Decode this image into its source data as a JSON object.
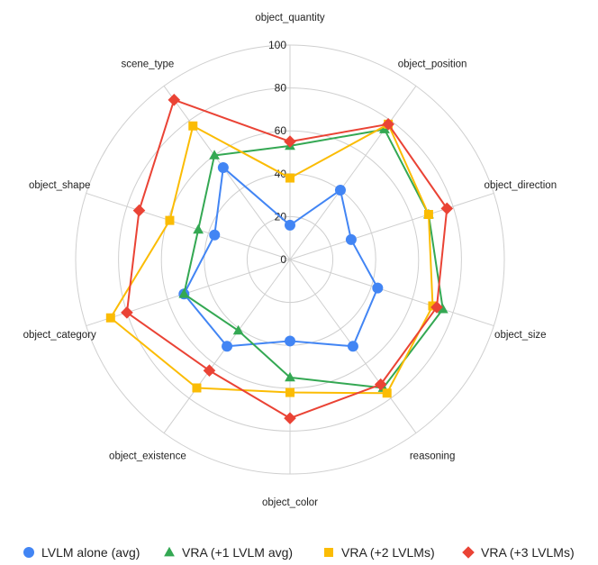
{
  "chart_data": {
    "type": "radar",
    "title": "",
    "range": [
      0,
      100
    ],
    "ticks": [
      "0",
      "20",
      "40",
      "60",
      "80",
      "100"
    ],
    "categories": [
      "object_quantity",
      "object_position",
      "object_direction",
      "object_size",
      "reasoning",
      "object_color",
      "object_existence",
      "object_category",
      "object_shape",
      "scene_type"
    ],
    "series": [
      {
        "name": "LVLM alone (avg)",
        "color": "#4285F4",
        "marker": "circle",
        "values": [
          16,
          40,
          30,
          43,
          50,
          38,
          50,
          52,
          37,
          53
        ]
      },
      {
        "name": "VRA (+1 LVLM avg)",
        "color": "#34A853",
        "marker": "triangle",
        "values": [
          53,
          75,
          68,
          75,
          74,
          55,
          41,
          52,
          45,
          60
        ]
      },
      {
        "name": "VRA (+2 LVLMs)",
        "color": "#FBBC04",
        "marker": "square",
        "values": [
          38,
          78,
          68,
          70,
          77,
          62,
          74,
          88,
          59,
          77
        ]
      },
      {
        "name": "VRA (+3 LVLMs)",
        "color": "#EA4335",
        "marker": "diamond",
        "values": [
          55,
          78,
          77,
          72,
          72,
          74,
          64,
          80,
          74,
          92
        ]
      }
    ],
    "legend_position": "bottom",
    "grid": true
  }
}
